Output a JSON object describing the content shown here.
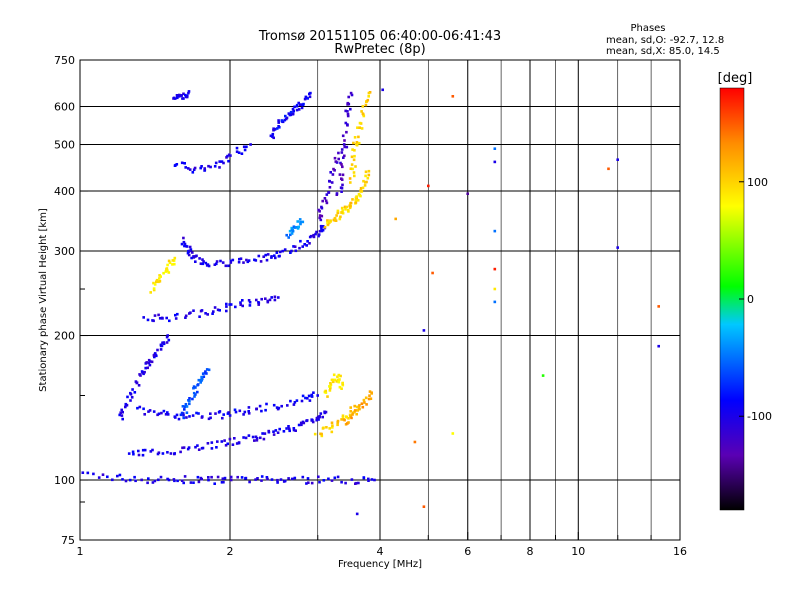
{
  "chart_data": {
    "type": "scatter",
    "title": "Tromsø 20151105 06:40:00-06:41:43",
    "subtitle": "RwPretec (8p)",
    "stats": {
      "heading": "Phases",
      "line1": "mean, sd,O: -92.7, 12.8",
      "line2": "mean, sd,X:  85.0, 14.5"
    },
    "xlabel": "Frequency [MHz]",
    "ylabel": "Stationary phase Virtual Height [km]",
    "x_scale": "log",
    "y_scale": "log",
    "xlim": [
      1,
      16
    ],
    "ylim": [
      75,
      750
    ],
    "x_ticks": [
      1,
      2,
      4,
      6,
      8,
      10,
      16
    ],
    "x_tick_labels": [
      "1",
      "2",
      "4",
      "6",
      "8",
      "10",
      "16"
    ],
    "x_minor_ticks": [
      3,
      5,
      7,
      9,
      12,
      14
    ],
    "y_ticks": [
      75,
      100,
      200,
      300,
      400,
      500,
      600,
      750
    ],
    "y_tick_labels": [
      "75",
      "100",
      "200",
      "300",
      "400",
      "500",
      "600",
      "750"
    ],
    "y_minor_ticks": [
      90,
      150,
      250
    ],
    "grid": true,
    "colorbar": {
      "label": "[deg]",
      "range": [
        -180,
        180
      ],
      "ticks": [
        100,
        0,
        -100
      ],
      "tick_labels": [
        "100",
        "0",
        "-100"
      ],
      "colors": [
        "#000000",
        "#5a00b4",
        "#0000ff",
        "#00c8ff",
        "#00ff00",
        "#ffff00",
        "#ff8c00",
        "#ff0000"
      ]
    },
    "traces": [
      {
        "x": [
          1.0,
          1.2,
          1.4,
          1.6,
          1.8,
          2.0,
          2.3,
          2.6,
          3.0,
          3.5,
          3.9
        ],
        "y": [
          103,
          101,
          100,
          100,
          100,
          100,
          100,
          100,
          100,
          100,
          100
        ],
        "phase": -100
      },
      {
        "x": [
          1.25,
          1.4,
          1.6,
          1.8,
          2.0,
          2.2,
          2.4,
          2.6,
          2.8,
          3.0,
          3.1
        ],
        "y": [
          113,
          114,
          116,
          118,
          120,
          122,
          124,
          127,
          131,
          135,
          138
        ],
        "phase": -100
      },
      {
        "x": [
          1.3,
          1.45,
          1.6,
          1.8,
          2.0,
          2.2,
          2.5,
          2.8,
          3.0
        ],
        "y": [
          140,
          137,
          136,
          136,
          137,
          140,
          143,
          147,
          150
        ],
        "phase": -95
      },
      {
        "x": [
          1.2,
          1.25,
          1.3,
          1.35,
          1.4,
          1.45,
          1.5
        ],
        "y": [
          135,
          145,
          160,
          170,
          180,
          190,
          200
        ],
        "phase": -100
      },
      {
        "x": [
          1.6,
          1.65,
          1.7,
          1.75,
          1.8
        ],
        "y": [
          135,
          145,
          155,
          162,
          170
        ],
        "phase": -60
      },
      {
        "x": [
          3.0,
          3.2,
          3.4,
          3.6
        ],
        "y": [
          125,
          128,
          135,
          142
        ],
        "phase": 100
      },
      {
        "x": [
          3.1,
          3.2,
          3.3,
          3.35
        ],
        "y": [
          150,
          160,
          165,
          155
        ],
        "phase": 90
      },
      {
        "x": [
          3.4,
          3.55,
          3.7,
          3.85
        ],
        "y": [
          130,
          138,
          145,
          152
        ],
        "phase": 120
      },
      {
        "x": [
          1.35,
          1.5,
          1.7,
          1.9,
          2.1,
          2.3,
          2.5
        ],
        "y": [
          217,
          218,
          222,
          227,
          232,
          236,
          240
        ],
        "phase": -100
      },
      {
        "x": [
          1.4,
          1.45,
          1.5,
          1.55
        ],
        "y": [
          250,
          265,
          275,
          290
        ],
        "phase": 90
      },
      {
        "x": [
          1.6,
          1.65,
          1.7,
          1.8
        ],
        "y": [
          320,
          300,
          290,
          280
        ],
        "phase": -100
      },
      {
        "x": [
          1.8,
          2.0,
          2.2,
          2.4,
          2.6,
          2.8,
          3.0,
          3.1
        ],
        "y": [
          282,
          283,
          287,
          292,
          300,
          312,
          325,
          335
        ],
        "phase": -100
      },
      {
        "x": [
          2.6,
          2.7,
          2.8
        ],
        "y": [
          325,
          335,
          345
        ],
        "phase": -40
      },
      {
        "x": [
          3.1,
          3.2,
          3.3,
          3.4,
          3.5,
          3.6,
          3.7,
          3.8
        ],
        "y": [
          340,
          345,
          355,
          365,
          375,
          390,
          410,
          440
        ],
        "phase": 100
      },
      {
        "x": [
          3.0,
          3.1,
          3.2,
          3.3
        ],
        "y": [
          350,
          380,
          420,
          480
        ],
        "phase": -120
      },
      {
        "x": [
          3.3,
          3.35,
          3.4,
          3.45,
          3.5
        ],
        "y": [
          390,
          440,
          500,
          580,
          640
        ],
        "phase": -120
      },
      {
        "x": [
          3.5,
          3.55,
          3.6,
          3.7,
          3.8
        ],
        "y": [
          420,
          470,
          520,
          580,
          640
        ],
        "phase": 100
      },
      {
        "x": [
          1.55,
          1.7,
          1.85,
          2.0,
          2.2
        ],
        "y": [
          460,
          440,
          450,
          470,
          500
        ],
        "phase": -100
      },
      {
        "x": [
          2.4,
          2.5,
          2.6,
          2.7,
          2.8,
          2.9
        ],
        "y": [
          520,
          545,
          570,
          590,
          610,
          640
        ],
        "phase": -90
      },
      {
        "x": [
          1.55,
          1.6,
          1.65
        ],
        "y": [
          620,
          630,
          640
        ],
        "phase": -100
      }
    ],
    "sparse_points": [
      {
        "x": 5.6,
        "y": 630,
        "phase": 150
      },
      {
        "x": 5.0,
        "y": 410,
        "phase": 170
      },
      {
        "x": 6.8,
        "y": 490,
        "phase": -50
      },
      {
        "x": 6.8,
        "y": 460,
        "phase": -100
      },
      {
        "x": 6.8,
        "y": 330,
        "phase": -50
      },
      {
        "x": 6.8,
        "y": 275,
        "phase": 170
      },
      {
        "x": 6.8,
        "y": 250,
        "phase": 90
      },
      {
        "x": 6.8,
        "y": 235,
        "phase": -50
      },
      {
        "x": 6.0,
        "y": 395,
        "phase": -140
      },
      {
        "x": 4.3,
        "y": 350,
        "phase": 120
      },
      {
        "x": 5.1,
        "y": 270,
        "phase": 150
      },
      {
        "x": 4.9,
        "y": 205,
        "phase": -100
      },
      {
        "x": 5.6,
        "y": 125,
        "phase": 80
      },
      {
        "x": 4.7,
        "y": 120,
        "phase": 140
      },
      {
        "x": 12.0,
        "y": 465,
        "phase": -100
      },
      {
        "x": 11.5,
        "y": 445,
        "phase": 150
      },
      {
        "x": 12.0,
        "y": 305,
        "phase": -100
      },
      {
        "x": 14.5,
        "y": 230,
        "phase": 150
      },
      {
        "x": 14.5,
        "y": 190,
        "phase": -100
      },
      {
        "x": 8.5,
        "y": 165,
        "phase": 20
      },
      {
        "x": 4.9,
        "y": 88,
        "phase": 150
      },
      {
        "x": 4.05,
        "y": 650,
        "phase": -100
      },
      {
        "x": 3.6,
        "y": 85,
        "phase": -100
      }
    ]
  }
}
